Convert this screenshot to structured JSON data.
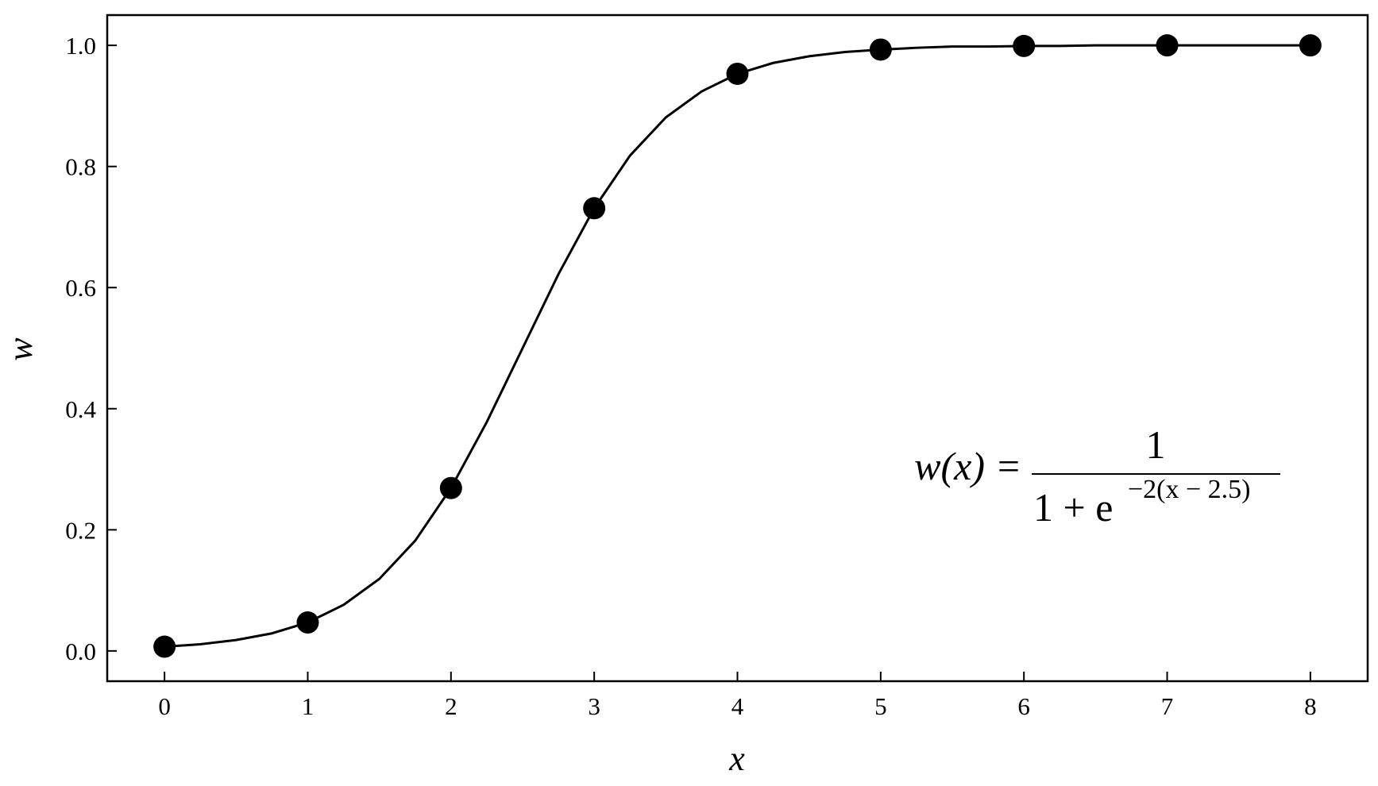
{
  "chart_data": {
    "type": "line",
    "xlabel": "x",
    "ylabel": "w",
    "xlim": [
      -0.4,
      8.4
    ],
    "ylim": [
      -0.05,
      1.05
    ],
    "xticks": [
      0,
      1,
      2,
      3,
      4,
      5,
      6,
      7,
      8
    ],
    "yticks": [
      {
        "value": 0,
        "label": "0.0"
      },
      0.2,
      0.4,
      0.6,
      0.8,
      {
        "value": 1,
        "label": "1.0"
      }
    ],
    "grid": false,
    "series": [
      {
        "type": "line",
        "color": "#000000",
        "x": [
          0,
          0.25,
          0.5,
          0.75,
          1,
          1.25,
          1.5,
          1.75,
          2,
          2.25,
          2.5,
          2.75,
          3,
          3.25,
          3.5,
          3.75,
          4,
          4.25,
          4.5,
          4.75,
          5,
          5.25,
          5.5,
          5.75,
          6,
          6.25,
          6.5,
          6.75,
          7,
          7.25,
          7.5,
          7.75,
          8
        ],
        "values": [
          0.007,
          0.011,
          0.018,
          0.029,
          0.047,
          0.076,
          0.119,
          0.182,
          0.269,
          0.378,
          0.5,
          0.622,
          0.731,
          0.818,
          0.881,
          0.924,
          0.953,
          0.971,
          0.982,
          0.989,
          0.993,
          0.996,
          0.998,
          0.998,
          0.999,
          0.999,
          1.0,
          1.0,
          1.0,
          1.0,
          1.0,
          1.0,
          1.0
        ]
      },
      {
        "type": "scatter",
        "color": "#000000",
        "x": [
          0,
          1,
          2,
          3,
          4,
          5,
          6,
          7,
          8
        ],
        "values": [
          0.007,
          0.047,
          0.269,
          0.731,
          0.953,
          0.993,
          0.999,
          1.0,
          1.0
        ]
      }
    ],
    "annotation": {
      "lhs": "w(x)",
      "equals": "=",
      "numerator": "1",
      "denominator": "1 + e",
      "exponent": "−2(x − 2.5)"
    }
  }
}
